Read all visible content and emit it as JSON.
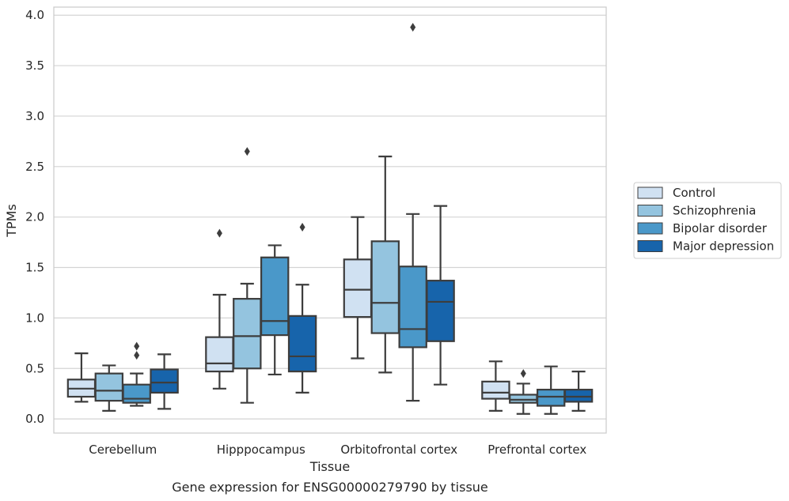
{
  "caption": "Gene expression for ENSG00000279790 by tissue",
  "chart_data": {
    "type": "boxplot",
    "xlabel": "Tissue",
    "ylabel": "TPMs",
    "ylim": [
      -0.14,
      4.08
    ],
    "yticks": [
      "0.0",
      "0.5",
      "1.0",
      "1.5",
      "2.0",
      "2.5",
      "3.0",
      "3.5",
      "4.0"
    ],
    "grid": "horizontal",
    "legend_position": "right",
    "categories": [
      "Cerebellum",
      "Hipppocampus",
      "Orbitofrontal cortex",
      "Prefrontal cortex"
    ],
    "series": [
      {
        "name": "Control",
        "color": "#d0e1f2",
        "boxes": [
          {
            "whislo": 0.17,
            "q1": 0.22,
            "med": 0.3,
            "q3": 0.39,
            "whishi": 0.65,
            "fliers": []
          },
          {
            "whislo": 0.3,
            "q1": 0.47,
            "med": 0.55,
            "q3": 0.81,
            "whishi": 1.23,
            "fliers": [
              1.84
            ]
          },
          {
            "whislo": 0.6,
            "q1": 1.01,
            "med": 1.28,
            "q3": 1.58,
            "whishi": 2.0,
            "fliers": []
          },
          {
            "whislo": 0.08,
            "q1": 0.2,
            "med": 0.26,
            "q3": 0.37,
            "whishi": 0.57,
            "fliers": []
          }
        ]
      },
      {
        "name": "Schizophrenia",
        "color": "#94c4df",
        "boxes": [
          {
            "whislo": 0.08,
            "q1": 0.18,
            "med": 0.28,
            "q3": 0.45,
            "whishi": 0.53,
            "fliers": []
          },
          {
            "whislo": 0.16,
            "q1": 0.5,
            "med": 0.82,
            "q3": 1.19,
            "whishi": 1.34,
            "fliers": [
              2.65
            ]
          },
          {
            "whislo": 0.46,
            "q1": 0.85,
            "med": 1.15,
            "q3": 1.76,
            "whishi": 2.6,
            "fliers": []
          },
          {
            "whislo": 0.05,
            "q1": 0.16,
            "med": 0.19,
            "q3": 0.24,
            "whishi": 0.35,
            "fliers": [
              0.45
            ]
          }
        ]
      },
      {
        "name": "Bipolar disorder",
        "color": "#4a98c9",
        "boxes": [
          {
            "whislo": 0.13,
            "q1": 0.16,
            "med": 0.2,
            "q3": 0.34,
            "whishi": 0.45,
            "fliers": [
              0.63,
              0.72
            ]
          },
          {
            "whislo": 0.44,
            "q1": 0.83,
            "med": 0.97,
            "q3": 1.6,
            "whishi": 1.72,
            "fliers": []
          },
          {
            "whislo": 0.18,
            "q1": 0.71,
            "med": 0.89,
            "q3": 1.51,
            "whishi": 2.03,
            "fliers": [
              3.88
            ]
          },
          {
            "whislo": 0.05,
            "q1": 0.13,
            "med": 0.22,
            "q3": 0.29,
            "whishi": 0.52,
            "fliers": []
          }
        ]
      },
      {
        "name": "Major depression",
        "color": "#1764ab",
        "boxes": [
          {
            "whislo": 0.1,
            "q1": 0.26,
            "med": 0.36,
            "q3": 0.49,
            "whishi": 0.64,
            "fliers": []
          },
          {
            "whislo": 0.26,
            "q1": 0.47,
            "med": 0.62,
            "q3": 1.02,
            "whishi": 1.33,
            "fliers": [
              1.9
            ]
          },
          {
            "whislo": 0.34,
            "q1": 0.77,
            "med": 1.16,
            "q3": 1.37,
            "whishi": 2.11,
            "fliers": []
          },
          {
            "whislo": 0.08,
            "q1": 0.17,
            "med": 0.22,
            "q3": 0.29,
            "whishi": 0.47,
            "fliers": []
          }
        ]
      }
    ]
  }
}
